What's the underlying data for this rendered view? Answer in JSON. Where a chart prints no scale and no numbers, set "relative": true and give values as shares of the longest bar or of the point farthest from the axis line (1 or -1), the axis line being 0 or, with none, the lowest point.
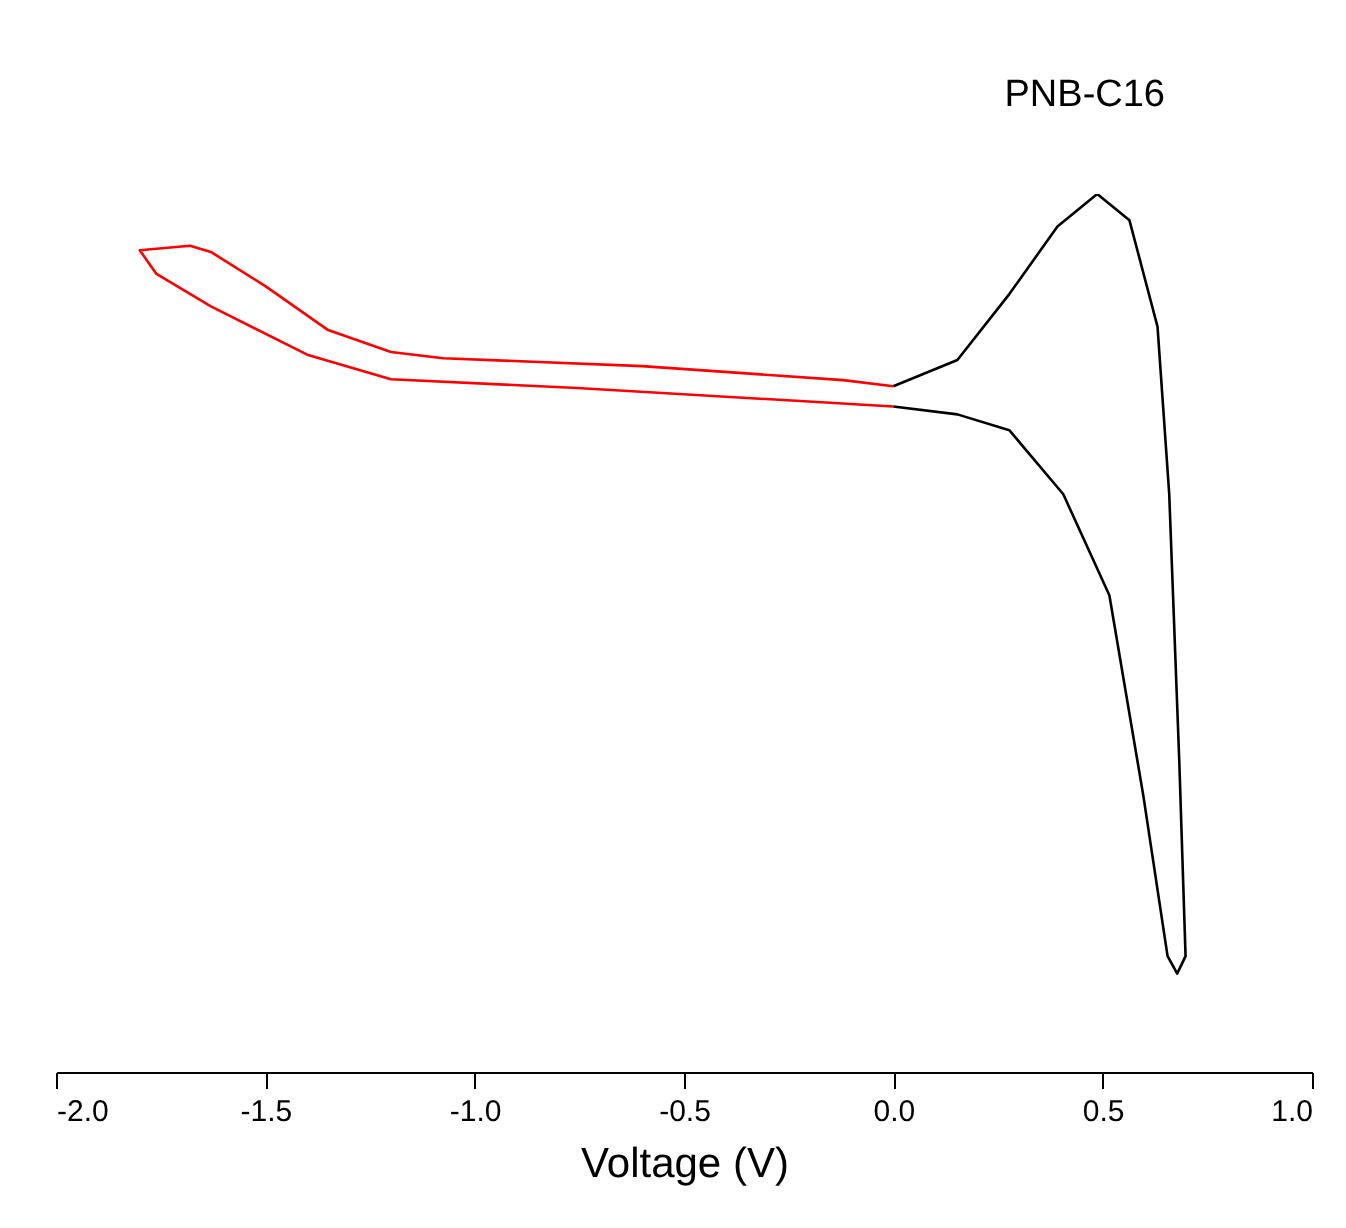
{
  "chart_data": {
    "type": "line",
    "title": "PNB-C16",
    "xlabel": "Voltage (V)",
    "relative": true,
    "xlim": [
      -2.0,
      1.0
    ],
    "xticks": [
      {
        "value": -2.0,
        "label": "-2.0"
      },
      {
        "value": -1.5,
        "label": "-1.5"
      },
      {
        "value": -1.0,
        "label": "-1.0"
      },
      {
        "value": -0.5,
        "label": "-0.5"
      },
      {
        "value": 0.0,
        "label": "0.0"
      },
      {
        "value": 0.5,
        "label": "0.5"
      },
      {
        "value": 1.0,
        "label": "1.0"
      }
    ],
    "grid": false,
    "marker": "none",
    "line_style": "solid",
    "series": [
      {
        "color": "#ff0000",
        "x": [
          0.0,
          -0.12,
          -0.6,
          -1.075,
          -1.2,
          -1.35,
          -1.5,
          -1.63,
          -1.68,
          -1.8,
          -1.76,
          -1.63,
          -1.4,
          -1.2,
          -0.755,
          0.0
        ],
        "values": [
          0.781,
          0.788,
          0.804,
          0.813,
          0.82,
          0.845,
          0.895,
          0.934,
          0.941,
          0.936,
          0.909,
          0.872,
          0.817,
          0.789,
          0.779,
          0.758
        ]
      },
      {
        "color": "#000000",
        "x": [
          0.0,
          0.153,
          0.277,
          0.392,
          0.487,
          0.564,
          0.631,
          0.659,
          0.683,
          0.698,
          0.678,
          0.655,
          0.597,
          0.516,
          0.406,
          0.277,
          0.153,
          0.0
        ],
        "values": [
          0.781,
          0.811,
          0.886,
          0.963,
          1.0,
          0.97,
          0.849,
          0.658,
          0.354,
          0.132,
          0.112,
          0.132,
          0.315,
          0.543,
          0.658,
          0.731,
          0.749,
          0.758
        ]
      }
    ]
  }
}
